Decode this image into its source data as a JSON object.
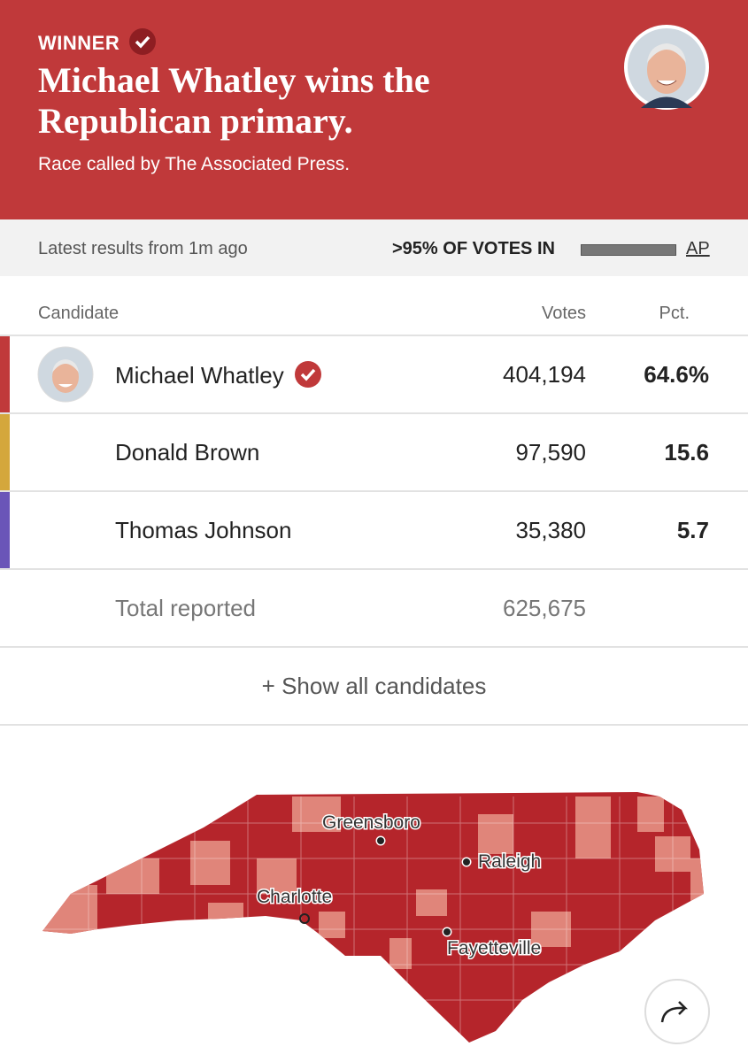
{
  "header": {
    "label": "WINNER",
    "title": "Michael Whatley wins the Republican primary.",
    "subtitle": "Race called by The Associated Press."
  },
  "status": {
    "latest": "Latest results from 1m ago",
    "votes_in": ">95% OF VOTES IN",
    "source": "AP"
  },
  "table": {
    "columns": [
      "Candidate",
      "Votes",
      "Pct."
    ],
    "rows": [
      {
        "name": "Michael Whatley",
        "votes": "404,194",
        "pct": "64.6%",
        "color": "#c0393a"
      },
      {
        "name": "Donald Brown",
        "votes": "97,590",
        "pct": "15.6",
        "color": "#d4a73c"
      },
      {
        "name": "Thomas Johnson",
        "votes": "35,380",
        "pct": "5.7",
        "color": "#6a55b8"
      }
    ],
    "total": {
      "label": "Total reported",
      "votes": "625,675"
    }
  },
  "show_all": "+ Show all candidates",
  "map": {
    "cities": [
      "Greensboro",
      "Raleigh",
      "Charlotte",
      "Fayetteville"
    ]
  }
}
